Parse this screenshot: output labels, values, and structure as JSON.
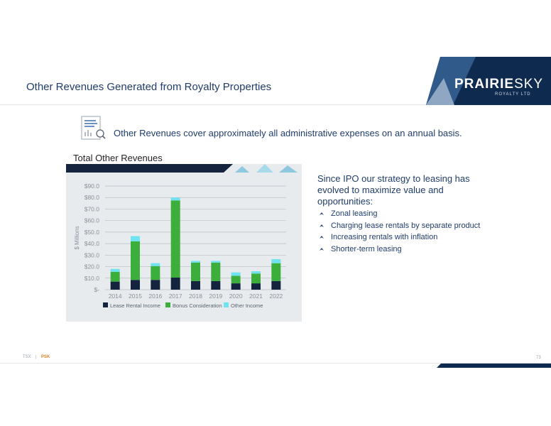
{
  "header": {
    "title": "Other Revenues Generated from Royalty Properties",
    "logo_main": "PRAIRIE",
    "logo_sky": "SKY",
    "logo_sub": "ROYALTY LTD"
  },
  "intro": {
    "text": "Other Revenues cover approximately all administrative expenses on an annual basis."
  },
  "strategy": {
    "text": "Since IPO our strategy to leasing has evolved to maximize value and opportunities:",
    "bullets": [
      "Zonal leasing",
      "Charging lease rentals by separate product",
      "Increasing rentals with inflation",
      "Shorter-term leasing"
    ]
  },
  "footer": {
    "exchange": "TSX",
    "separator": "|",
    "ticker": "PSK",
    "page_number": "73"
  },
  "colors": {
    "navy": "#1f3d6b",
    "lease": "#14243f",
    "bonus": "#3cae3c",
    "other": "#6fe3ef",
    "accent_orange": "#d9822b"
  },
  "chart_data": {
    "type": "bar",
    "stacked": true,
    "title": "Total Other Revenues",
    "ylabel": "$ Millions",
    "xlabel": "",
    "categories": [
      "2014",
      "2015",
      "2016",
      "2017",
      "2018",
      "2019",
      "2020",
      "2021",
      "2022"
    ],
    "series": [
      {
        "name": "Lease Rental Income",
        "color": "#14243f",
        "values": [
          7,
          8.5,
          8.5,
          10.5,
          7.5,
          7.5,
          5.5,
          5.5,
          7.5
        ]
      },
      {
        "name": "Bonus Consideration",
        "color": "#3cae3c",
        "values": [
          8.5,
          33.5,
          12,
          67,
          16,
          16,
          6.5,
          8.5,
          15.5
        ]
      },
      {
        "name": "Other Income",
        "color": "#6fe3ef",
        "values": [
          2.5,
          4.5,
          2.5,
          2.5,
          1.5,
          1.5,
          3,
          2,
          3.5
        ]
      }
    ],
    "ylim": [
      0,
      90
    ],
    "yticks": [
      "$-",
      "$10.0",
      "$20.0",
      "$30.0",
      "$40.0",
      "$50.0",
      "$60.0",
      "$70.0",
      "$80.0",
      "$90.0"
    ],
    "grid": true,
    "legend_position": "bottom"
  }
}
